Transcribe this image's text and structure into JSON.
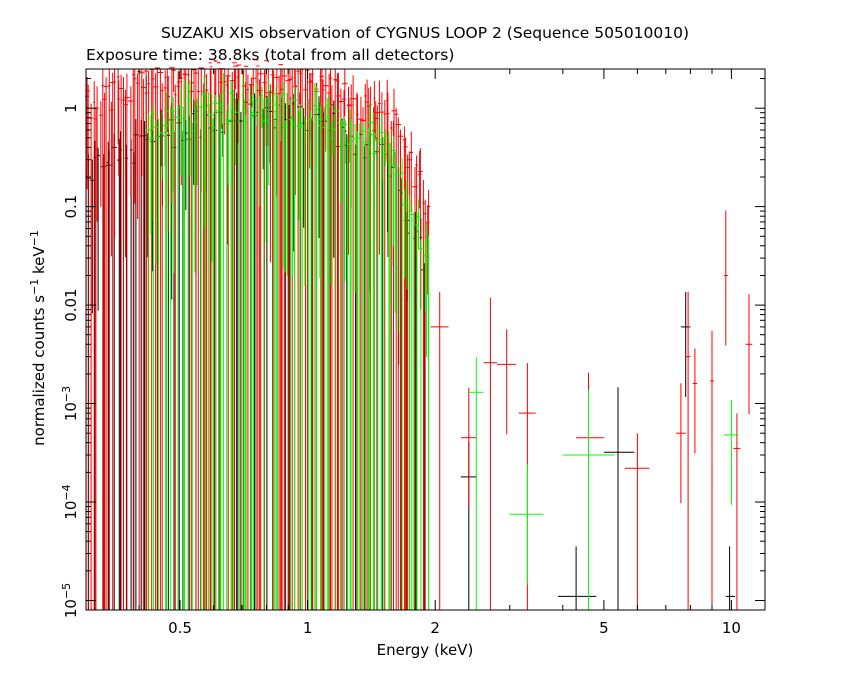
{
  "chart_data": {
    "type": "scatter",
    "title": "SUZAKU XIS observation of CYGNUS LOOP 2 (Sequence 505010010)",
    "subtitle": "Exposure time: 38.8ks (total from all detectors)",
    "xlabel": "Energy (keV)",
    "ylabel_parts": {
      "base": "normalized counts s",
      "exp1": "−1",
      "mid": " keV",
      "exp2": "−1"
    },
    "x_scale": "log",
    "y_scale": "log",
    "xlim": [
      0.3,
      12
    ],
    "ylim": [
      8e-06,
      2.5
    ],
    "x_ticks": [
      {
        "value": 0.5,
        "label": "0.5"
      },
      {
        "value": 1,
        "label": "1"
      },
      {
        "value": 2,
        "label": "2"
      },
      {
        "value": 5,
        "label": "5"
      },
      {
        "value": 10,
        "label": "10"
      }
    ],
    "y_ticks": [
      {
        "value": 1e-05,
        "mant": "10",
        "exp": "−5"
      },
      {
        "value": 0.0001,
        "mant": "10",
        "exp": "−4"
      },
      {
        "value": 0.001,
        "mant": "10",
        "exp": "−3"
      },
      {
        "value": 0.01,
        "label": "0.01"
      },
      {
        "value": 0.1,
        "label": "0.1"
      },
      {
        "value": 1,
        "label": "1"
      }
    ],
    "grid": false,
    "series": [
      {
        "color": "#000000",
        "dense": {
          "x_range": [
            0.3,
            1.9
          ],
          "peak_x": 0.75,
          "peak_y": 0.8,
          "width": 0.5,
          "fall_x": 1.5,
          "n": 90
        },
        "points": [
          {
            "x": 2.4,
            "y": 0.00018,
            "xerr": [
              2.3,
              2.5
            ]
          },
          {
            "x": 4.3,
            "y": 1.1e-05,
            "xerr": [
              3.9,
              4.8
            ]
          },
          {
            "x": 5.4,
            "y": 0.00032,
            "xerr": [
              5.0,
              5.9
            ]
          },
          {
            "x": 7.8,
            "y": 0.006,
            "xerr": [
              7.6,
              8.0
            ]
          },
          {
            "x": 9.9,
            "y": 1.1e-05,
            "xerr": [
              9.7,
              10.2
            ]
          }
        ]
      },
      {
        "color": "#ff0000",
        "dense": {
          "x_range": [
            0.3,
            1.95
          ],
          "peak_x": 0.65,
          "peak_y": 2.2,
          "width": 0.55,
          "fall_x": 1.6,
          "n": 160
        },
        "points": [
          {
            "x": 2.05,
            "y": 0.006,
            "xerr": [
              1.95,
              2.15
            ]
          },
          {
            "x": 2.4,
            "y": 0.00045,
            "xerr": [
              2.3,
              2.5
            ]
          },
          {
            "x": 2.7,
            "y": 0.0026,
            "xerr": [
              2.6,
              2.8
            ]
          },
          {
            "x": 2.95,
            "y": 0.0025,
            "xerr": [
              2.8,
              3.1
            ]
          },
          {
            "x": 3.3,
            "y": 0.0008,
            "xerr": [
              3.15,
              3.45
            ]
          },
          {
            "x": 4.6,
            "y": 0.00045,
            "xerr": [
              4.3,
              5.0
            ]
          },
          {
            "x": 6.0,
            "y": 0.00022,
            "xerr": [
              5.6,
              6.4
            ]
          },
          {
            "x": 7.6,
            "y": 0.0005,
            "xerr": [
              7.4,
              7.8
            ]
          },
          {
            "x": 7.9,
            "y": 0.003,
            "xerr": [
              7.8,
              8.0
            ]
          },
          {
            "x": 8.2,
            "y": 0.0016,
            "xerr": [
              8.1,
              8.3
            ]
          },
          {
            "x": 9.0,
            "y": 0.0017,
            "xerr": [
              8.9,
              9.1
            ]
          },
          {
            "x": 9.7,
            "y": 0.02,
            "xerr": [
              9.6,
              9.8
            ]
          },
          {
            "x": 10.3,
            "y": 0.00035,
            "xerr": [
              10.1,
              10.5
            ]
          },
          {
            "x": 11.0,
            "y": 0.004,
            "xerr": [
              10.8,
              11.2
            ]
          }
        ]
      },
      {
        "color": "#00ff00",
        "dense": {
          "x_range": [
            0.42,
            1.95
          ],
          "peak_x": 0.72,
          "peak_y": 1.0,
          "width": 0.5,
          "fall_x": 1.55,
          "n": 110
        },
        "points": [
          {
            "x": 2.5,
            "y": 0.0013,
            "xerr": [
              2.4,
              2.6
            ]
          },
          {
            "x": 3.3,
            "y": 7.5e-05,
            "xerr": [
              3.0,
              3.6
            ]
          },
          {
            "x": 4.6,
            "y": 0.0003,
            "xerr": [
              4.0,
              5.3
            ]
          },
          {
            "x": 10.0,
            "y": 0.00048,
            "xerr": [
              9.6,
              10.4
            ]
          }
        ]
      }
    ]
  }
}
